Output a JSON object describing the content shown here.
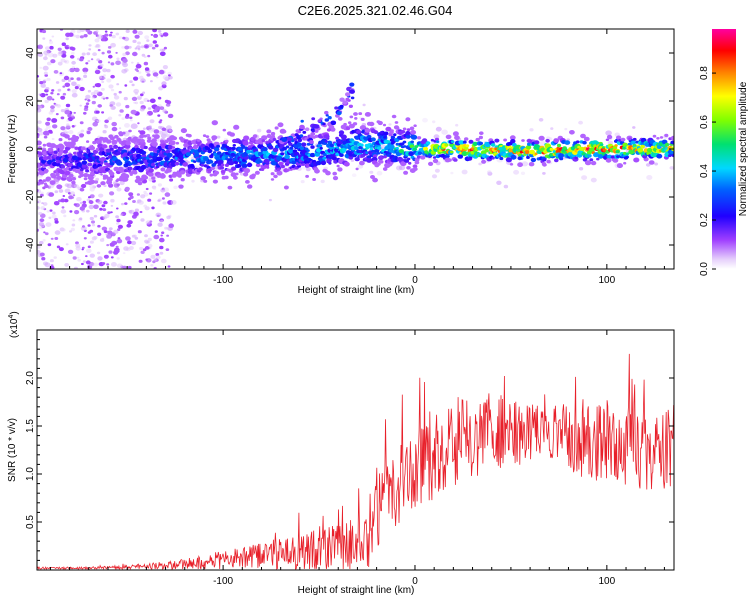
{
  "title": "C2E6.2025.321.02.46.G04",
  "chart_data": [
    {
      "type": "heatmap",
      "name": "spectrogram",
      "xlabel": "Height of straight line (km)",
      "ylabel": "Frequency (Hz)",
      "xlim": [
        -197,
        135
      ],
      "ylim": [
        -50,
        50
      ],
      "xticks": [
        -100,
        0,
        100
      ],
      "xtick_labels": [
        "-100",
        "0",
        "100"
      ],
      "yticks": [
        -40,
        -20,
        0,
        20,
        40
      ],
      "ytick_labels": [
        "-40",
        "-20",
        "0",
        "20",
        "40"
      ],
      "colorbar": {
        "label": "Normalized spectral amplitude",
        "range": [
          0.0,
          0.98
        ],
        "ticks": [
          0.0,
          0.2,
          0.4,
          0.6,
          0.8
        ],
        "tick_labels": [
          "0.0",
          "0.2",
          "0.4",
          "0.6",
          "0.8"
        ],
        "colors": [
          "#ffffff",
          "#d8b4f5",
          "#9000ff",
          "#0000ff",
          "#00d8ff",
          "#00e070",
          "#80ff00",
          "#ffff00",
          "#ff8000",
          "#ff0000",
          "#ff00a0"
        ]
      },
      "ridge": {
        "description_points_height_km": [
          -197,
          -150,
          -100,
          -60,
          -45,
          -30,
          -15,
          0,
          20,
          60,
          100,
          135
        ],
        "frequency_hz": [
          -5,
          -4,
          -3,
          -2,
          -1,
          2,
          1,
          0,
          0,
          -1,
          0,
          0
        ],
        "peak_amplitude": [
          0.25,
          0.35,
          0.4,
          0.42,
          0.45,
          0.5,
          0.45,
          0.6,
          0.9,
          0.85,
          0.9,
          0.75
        ]
      },
      "secondary_branch": {
        "height_km": [
          -70,
          -55,
          -45,
          -38,
          -32
        ],
        "frequency_hz": [
          3,
          8,
          13,
          18,
          24
        ]
      }
    },
    {
      "type": "line",
      "name": "snr",
      "xlabel": "Height of straight line (km)",
      "ylabel": "SNR (10 * v/v)",
      "y_scale_label": "(x10",
      "y_scale_exp": "4",
      "y_scale_close": ")",
      "xlim": [
        -197,
        135
      ],
      "ylim": [
        0,
        2.5
      ],
      "xticks": [
        -100,
        0,
        100
      ],
      "xtick_labels": [
        "-100",
        "0",
        "100"
      ],
      "yticks": [
        0.5,
        1.0,
        1.5,
        2.0
      ],
      "ytick_labels": [
        "0.5",
        "1.0",
        "1.5",
        "2.0"
      ],
      "color": "#e8202a",
      "series": [
        {
          "name": "SNR",
          "x": [
            -197,
            -175,
            -150,
            -125,
            -100,
            -80,
            -60,
            -40,
            -25,
            -20,
            -10,
            0,
            10,
            20,
            40,
            60,
            80,
            100,
            115,
            125,
            135
          ],
          "mean": [
            0.02,
            0.02,
            0.03,
            0.05,
            0.1,
            0.14,
            0.18,
            0.22,
            0.3,
            0.55,
            0.9,
            1.05,
            1.15,
            1.3,
            1.45,
            1.45,
            1.4,
            1.35,
            1.3,
            1.2,
            1.3
          ],
          "spread": [
            0.01,
            0.01,
            0.02,
            0.05,
            0.1,
            0.15,
            0.2,
            0.25,
            0.3,
            0.4,
            0.45,
            0.45,
            0.45,
            0.45,
            0.4,
            0.35,
            0.4,
            0.45,
            0.45,
            0.45,
            0.45
          ]
        }
      ]
    }
  ]
}
